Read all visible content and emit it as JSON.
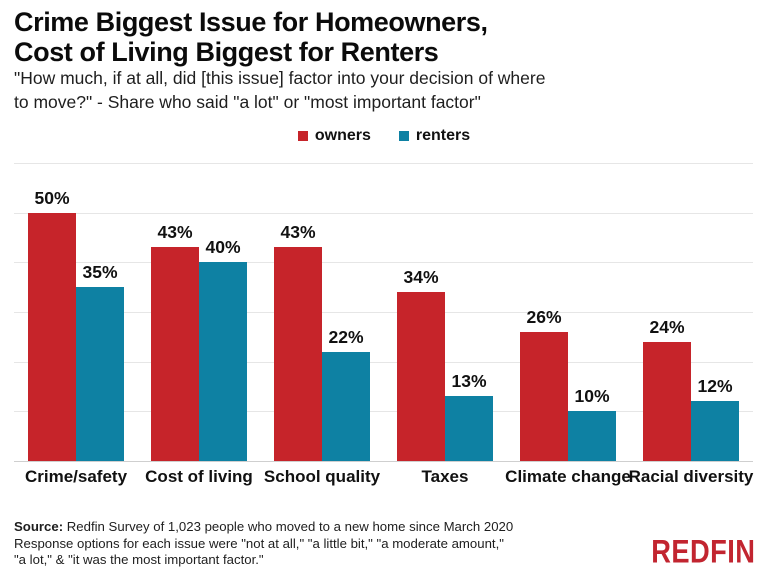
{
  "header": {
    "title_lines": [
      "Crime Biggest Issue for Homeowners,",
      "Cost of Living Biggest for Renters"
    ],
    "subtitle_lines": [
      "\"How much, if at all, did [this issue] factor into your decision of where",
      "to move?\" - Share who said \"a lot\" or \"most important factor\""
    ]
  },
  "chart_data": {
    "type": "bar",
    "title": "Crime Biggest Issue for Homeowners, Cost of Living Biggest for Renters",
    "subtitle": "\"How much, if at all, did [this issue] factor into your decision of where to move?\" - Share who said \"a lot\" or \"most important factor\"",
    "categories": [
      "Crime/safety",
      "Cost of living",
      "School quality",
      "Taxes",
      "Climate change",
      "Racial diversity"
    ],
    "series": [
      {
        "name": "owners",
        "color": "#c6242a",
        "values": [
          50,
          43,
          43,
          34,
          26,
          24
        ]
      },
      {
        "name": "renters",
        "color": "#0e81a3",
        "values": [
          35,
          40,
          22,
          13,
          10,
          12
        ]
      }
    ],
    "value_label_format": "{value}%",
    "ylabel": "",
    "xlabel": "",
    "ylim": [
      0,
      60
    ],
    "gridlines_pct": [
      10,
      20,
      30,
      40,
      50,
      60
    ],
    "grid": "horizontal",
    "legend_position": "top-center",
    "colors": {
      "owners_red": "#c6242a",
      "renters_teal": "#0e81a3",
      "gridline": "#e6e6e6"
    }
  },
  "footer": {
    "source_label": "Source:",
    "source_text": " Redfin Survey of 1,023 people who moved to a new home since March 2020",
    "lines": [
      "Response options for each issue were \"not at all,\" \"a little bit,\" \"a moderate amount,\"",
      "\"a lot,\" & \"it was the most important factor.\""
    ],
    "logo_text": "REDFIN",
    "logo_color": "#c22530"
  }
}
